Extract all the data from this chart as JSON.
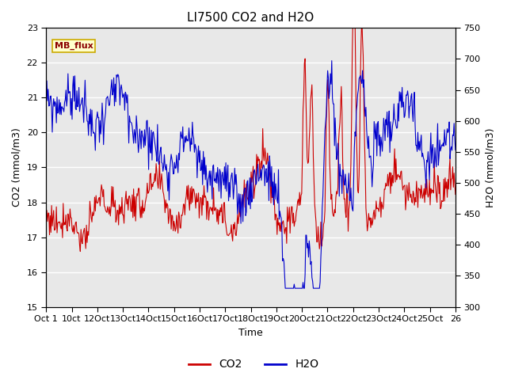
{
  "title": "LI7500 CO2 and H2O",
  "xlabel": "Time",
  "ylabel_left": "CO2 (mmol/m3)",
  "ylabel_right": "H2O (mmol/m3)",
  "co2_ylim": [
    15.0,
    23.0
  ],
  "h2o_ylim": [
    300,
    750
  ],
  "co2_yticks": [
    15.0,
    16.0,
    17.0,
    18.0,
    19.0,
    20.0,
    21.0,
    22.0,
    23.0
  ],
  "h2o_yticks": [
    300,
    350,
    400,
    450,
    500,
    550,
    600,
    650,
    700,
    750
  ],
  "xtick_labels": [
    "Oct 1",
    "10ct",
    "12Oct",
    "13Oct",
    "14Oct",
    "15Oct",
    "16Oct",
    "17Oct",
    "18Oct",
    "19Oct",
    "20Oct",
    "21Oct",
    "22Oct",
    "23Oct",
    "24Oct",
    "25Oct",
    "26"
  ],
  "annotation_text": "MB_flux",
  "background_color": "#e8e8e8",
  "co2_color": "#cc0000",
  "h2o_color": "#0000cc",
  "title_fontsize": 11,
  "axis_label_fontsize": 9,
  "tick_fontsize": 8,
  "legend_fontsize": 10
}
